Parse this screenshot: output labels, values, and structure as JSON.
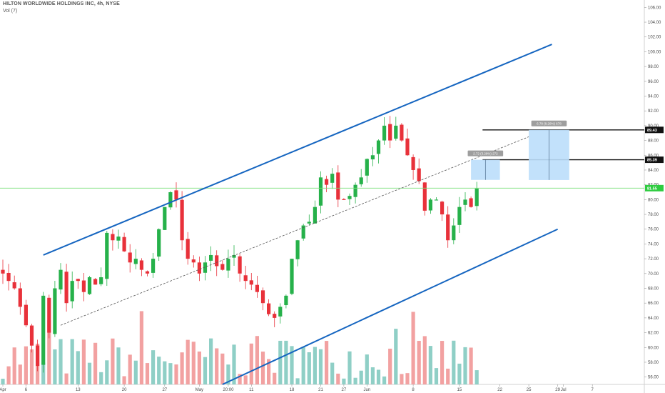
{
  "header": {
    "title": "HILTON WORLDWIDE HOLDINGS INC, 4h, NYSE",
    "volume_label": "Vol (7)"
  },
  "colors": {
    "up": "#26b14a",
    "down": "#e8313a",
    "vol_up": "#8fcfc6",
    "vol_down": "#f2a1a1",
    "channel": "#1565c0",
    "median": "#555555",
    "current": "#7be07b",
    "target_box": "#bbdefb",
    "label_box": "#9e9e9e"
  },
  "chart_data": {
    "type": "candlestick",
    "title": "HILTON WORLDWIDE HOLDINGS INC, 4h, NYSE",
    "ylim": [
      55,
      107
    ],
    "y_ticks": [
      "56.00",
      "58.00",
      "60.00",
      "62.00",
      "64.00",
      "66.00",
      "68.00",
      "70.00",
      "72.00",
      "74.00",
      "76.00",
      "78.00",
      "80.00",
      "82.00",
      "84.00",
      "86.00",
      "88.00",
      "90.00",
      "92.00",
      "94.00",
      "96.00",
      "98.00",
      "100.00",
      "102.00",
      "104.00",
      "106.00"
    ],
    "x_ticks": [
      {
        "label": "Apr",
        "bar": 0
      },
      {
        "label": "6",
        "bar": 4
      },
      {
        "label": "13",
        "bar": 13
      },
      {
        "label": "20",
        "bar": 21
      },
      {
        "label": "27",
        "bar": 28
      },
      {
        "label": "May",
        "bar": 34
      },
      {
        "label": "20:00",
        "bar": 39
      },
      {
        "label": "11",
        "bar": 43
      },
      {
        "label": "18",
        "bar": 50
      },
      {
        "label": "21",
        "bar": 55
      },
      {
        "label": "27",
        "bar": 59
      },
      {
        "label": "Jun",
        "bar": 63
      },
      {
        "label": "8",
        "bar": 71
      },
      {
        "label": "15",
        "bar": 79
      },
      {
        "label": "22",
        "bar": 86
      },
      {
        "label": "25",
        "bar": 91
      },
      {
        "label": "29",
        "bar": 96
      },
      {
        "label": "Jul",
        "bar": 97
      },
      {
        "label": "7",
        "bar": 102
      }
    ],
    "bar_count": 107,
    "current_price_label": "81.55",
    "price_tags": [
      {
        "label": "89.43",
        "value": 89.43
      },
      {
        "label": "85.39",
        "value": 85.39
      }
    ],
    "current_price": 81.55,
    "anchors": [
      [
        0,
        70.0
      ],
      [
        2,
        68.0
      ],
      [
        4,
        63.0
      ],
      [
        6,
        57.5
      ],
      [
        7,
        67.0
      ],
      [
        8,
        62.0
      ],
      [
        9,
        68.0
      ],
      [
        10,
        70.5
      ],
      [
        11,
        66.0
      ],
      [
        12,
        69.0
      ],
      [
        13,
        69.0
      ],
      [
        14,
        67.5
      ],
      [
        15,
        69.5
      ],
      [
        16,
        68.5
      ],
      [
        17,
        69.5
      ],
      [
        18,
        75.5
      ],
      [
        19,
        74.5
      ],
      [
        20,
        75.0
      ],
      [
        21,
        73.0
      ],
      [
        22,
        71.5
      ],
      [
        23,
        72.0
      ],
      [
        24,
        70.5
      ],
      [
        25,
        70.0
      ],
      [
        26,
        72.0
      ],
      [
        27,
        76.0
      ],
      [
        28,
        79.0
      ],
      [
        29,
        81.0
      ],
      [
        30,
        80.0
      ],
      [
        31,
        74.5
      ],
      [
        32,
        72.0
      ],
      [
        33,
        71.5
      ],
      [
        34,
        70.0
      ],
      [
        35,
        71.5
      ],
      [
        36,
        72.5
      ],
      [
        37,
        71.0
      ],
      [
        38,
        70.5
      ],
      [
        39,
        72.0
      ],
      [
        40,
        72.5
      ],
      [
        41,
        70.0
      ],
      [
        42,
        69.0
      ],
      [
        43,
        68.5
      ],
      [
        44,
        67.5
      ],
      [
        45,
        66.0
      ],
      [
        46,
        64.5
      ],
      [
        47,
        64.0
      ],
      [
        48,
        65.5
      ],
      [
        49,
        67.0
      ],
      [
        50,
        72.0
      ],
      [
        51,
        74.5
      ],
      [
        52,
        76.5
      ],
      [
        53,
        77.0
      ],
      [
        54,
        79.0
      ],
      [
        55,
        83.0
      ],
      [
        56,
        82.0
      ],
      [
        57,
        83.5
      ],
      [
        58,
        80.0
      ],
      [
        59,
        80.0
      ],
      [
        60,
        80.5
      ],
      [
        61,
        82.0
      ],
      [
        62,
        83.0
      ],
      [
        63,
        85.5
      ],
      [
        64,
        86.0
      ],
      [
        65,
        88.0
      ],
      [
        66,
        90.0
      ],
      [
        67,
        88.0
      ],
      [
        68,
        90.0
      ],
      [
        69,
        88.0
      ],
      [
        70,
        86.0
      ],
      [
        71,
        84.0
      ],
      [
        72,
        82.5
      ],
      [
        73,
        78.5
      ],
      [
        74,
        80.0
      ],
      [
        75,
        80.0
      ],
      [
        76,
        78.0
      ],
      [
        77,
        74.5
      ],
      [
        78,
        76.5
      ],
      [
        79,
        79.0
      ],
      [
        80,
        80.0
      ],
      [
        81,
        79.0
      ],
      [
        82,
        81.5
      ]
    ],
    "volume_range": [
      0.04,
      0.95
    ],
    "channel": {
      "upper": [
        [
          7,
          72.5
        ],
        [
          95,
          101.0
        ]
      ],
      "lower": [
        [
          38,
          55.0
        ],
        [
          96,
          76.0
        ]
      ],
      "median": [
        [
          10,
          63.0
        ],
        [
          91,
          88.5
        ]
      ]
    },
    "horizontal_lines": [
      89.43,
      85.39
    ],
    "targets": [
      {
        "label": "2.72 (3.29%) 272",
        "x0": 81,
        "x1": 86,
        "y_top": 85.39,
        "y_bottom": 82.67
      },
      {
        "label": "6.78 (8.20%) 678",
        "x0": 91,
        "x1": 98,
        "y_top": 89.43,
        "y_bottom": 82.65
      }
    ]
  }
}
